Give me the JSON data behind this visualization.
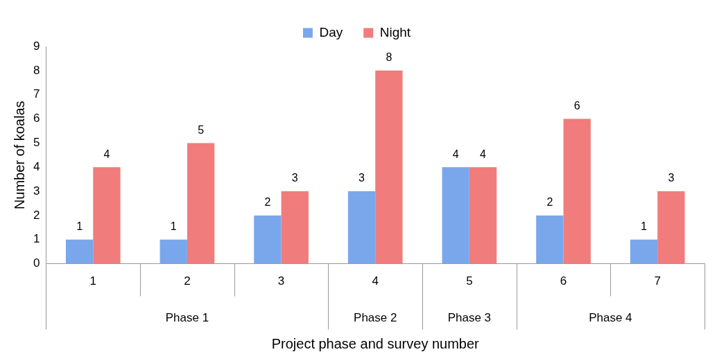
{
  "chart_data": {
    "type": "bar",
    "xlabel": "Project phase and survey number",
    "ylabel": "Number of koalas",
    "categories": [
      "1",
      "2",
      "3",
      "4",
      "5",
      "6",
      "7"
    ],
    "series": [
      {
        "name": "Day",
        "color": "#7aa7ec",
        "values": [
          1,
          1,
          2,
          3,
          4,
          2,
          1
        ]
      },
      {
        "name": "Night",
        "color": "#f07c7c",
        "values": [
          4,
          5,
          3,
          8,
          4,
          6,
          3
        ]
      }
    ],
    "ylim": [
      0,
      9
    ],
    "yticks": [
      0,
      1,
      2,
      3,
      4,
      5,
      6,
      7,
      8,
      9
    ],
    "grid": false,
    "legend": "top",
    "data_labels": true,
    "annotations": [
      "Phase 1",
      "Phase 2",
      "Phase 3",
      "Phase 4"
    ]
  }
}
